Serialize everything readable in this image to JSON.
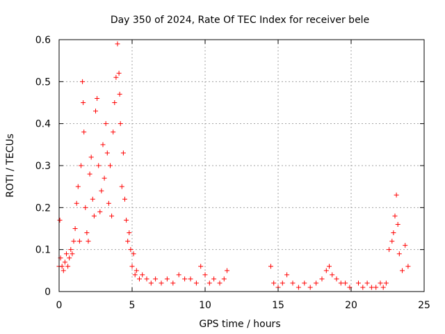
{
  "chart_data": {
    "type": "scatter",
    "title": "Day 350 of 2024, Rate Of TEC Index for receiver bele",
    "xlabel": "GPS time / hours",
    "ylabel": "ROTI / TECUs",
    "xlim": [
      0,
      25
    ],
    "ylim": [
      0,
      0.6
    ],
    "xticks": [
      0,
      5,
      10,
      15,
      20,
      25
    ],
    "xtick_labels": [
      "0",
      "5",
      "10",
      "15",
      "20",
      "25"
    ],
    "yticks": [
      0,
      0.1,
      0.2,
      0.3,
      0.4,
      0.5,
      0.6
    ],
    "ytick_labels": [
      "0",
      "0.1",
      "0.2",
      "0.3",
      "0.4",
      "0.5",
      "0.6"
    ],
    "grid": true,
    "marker": "+",
    "color": "#ff0000",
    "series": [
      {
        "name": "ROTI",
        "x": [
          0.0,
          0.05,
          0.1,
          0.2,
          0.3,
          0.4,
          0.5,
          0.6,
          0.7,
          0.8,
          0.9,
          1.0,
          1.1,
          1.2,
          1.3,
          1.4,
          1.5,
          1.6,
          1.65,
          1.7,
          1.8,
          1.9,
          2.0,
          2.1,
          2.2,
          2.3,
          2.4,
          2.5,
          2.6,
          2.7,
          2.8,
          2.9,
          3.0,
          3.1,
          3.2,
          3.3,
          3.4,
          3.5,
          3.6,
          3.7,
          3.8,
          3.9,
          4.0,
          4.1,
          4.15,
          4.2,
          4.3,
          4.4,
          4.5,
          4.6,
          4.7,
          4.8,
          4.9,
          5.0,
          5.1,
          5.2,
          5.3,
          5.5,
          5.7,
          6.0,
          6.3,
          6.6,
          7.0,
          7.4,
          7.8,
          8.2,
          8.6,
          9.0,
          9.4,
          9.7,
          10.0,
          10.3,
          10.6,
          11.0,
          11.3,
          11.5,
          14.5,
          14.7,
          15.0,
          15.3,
          15.6,
          16.0,
          16.4,
          16.8,
          17.2,
          17.6,
          18.0,
          18.3,
          18.5,
          18.7,
          19.0,
          19.3,
          19.6,
          19.9,
          20.5,
          20.8,
          21.1,
          21.4,
          21.7,
          22.0,
          22.2,
          22.4,
          22.6,
          22.8,
          22.9,
          23.0,
          23.1,
          23.2,
          23.3,
          23.5,
          23.7,
          23.9
        ],
        "y": [
          0.06,
          0.17,
          0.08,
          0.06,
          0.05,
          0.07,
          0.09,
          0.06,
          0.08,
          0.1,
          0.09,
          0.12,
          0.15,
          0.21,
          0.25,
          0.12,
          0.3,
          0.5,
          0.45,
          0.38,
          0.2,
          0.14,
          0.12,
          0.28,
          0.32,
          0.22,
          0.18,
          0.43,
          0.46,
          0.3,
          0.19,
          0.24,
          0.35,
          0.27,
          0.4,
          0.33,
          0.21,
          0.3,
          0.18,
          0.38,
          0.45,
          0.51,
          0.59,
          0.52,
          0.47,
          0.4,
          0.25,
          0.33,
          0.22,
          0.17,
          0.12,
          0.14,
          0.1,
          0.06,
          0.09,
          0.04,
          0.05,
          0.03,
          0.04,
          0.03,
          0.02,
          0.03,
          0.02,
          0.03,
          0.02,
          0.04,
          0.03,
          0.03,
          0.02,
          0.06,
          0.04,
          0.02,
          0.03,
          0.02,
          0.03,
          0.05,
          0.06,
          0.02,
          0.01,
          0.02,
          0.04,
          0.02,
          0.01,
          0.02,
          0.01,
          0.02,
          0.03,
          0.05,
          0.06,
          0.04,
          0.03,
          0.02,
          0.02,
          0.01,
          0.02,
          0.01,
          0.02,
          0.01,
          0.01,
          0.02,
          0.01,
          0.02,
          0.1,
          0.12,
          0.14,
          0.18,
          0.23,
          0.16,
          0.09,
          0.05,
          0.11,
          0.06
        ]
      }
    ]
  }
}
